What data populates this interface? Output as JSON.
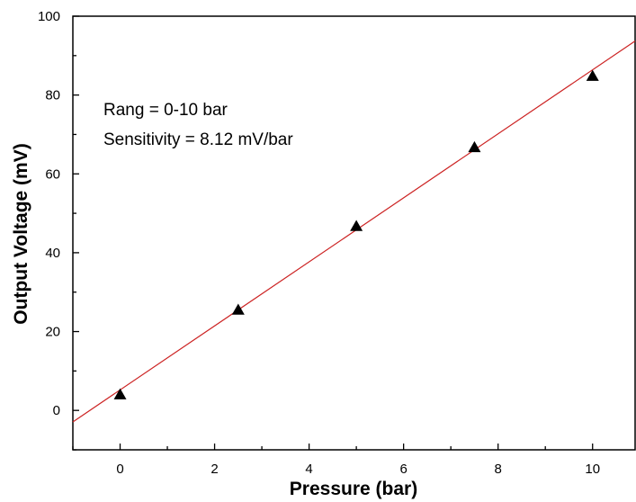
{
  "chart_data": {
    "type": "scatter",
    "xlabel": "Pressure (bar)",
    "ylabel": "Output Voltage (mV)",
    "xlim": [
      -1,
      10.9
    ],
    "ylim": [
      -10,
      100
    ],
    "xticks": [
      "0",
      "2",
      "4",
      "6",
      "8",
      "10"
    ],
    "yticks": [
      "0",
      "20",
      "40",
      "60",
      "80",
      "100"
    ],
    "grid": false,
    "series": [
      {
        "marker": "filled-triangle",
        "color": "#000000",
        "x": [
          0,
          2.5,
          5,
          7.5,
          10
        ],
        "y": [
          4,
          25.5,
          46.7,
          66.7,
          84.8
        ]
      }
    ],
    "fit_line": {
      "color": "#cc2222",
      "intercept": 5.2,
      "slope": 8.12
    },
    "annotations": [
      "Rang = 0-10 bar",
      "Sensitivity = 8.12 mV/bar"
    ]
  }
}
